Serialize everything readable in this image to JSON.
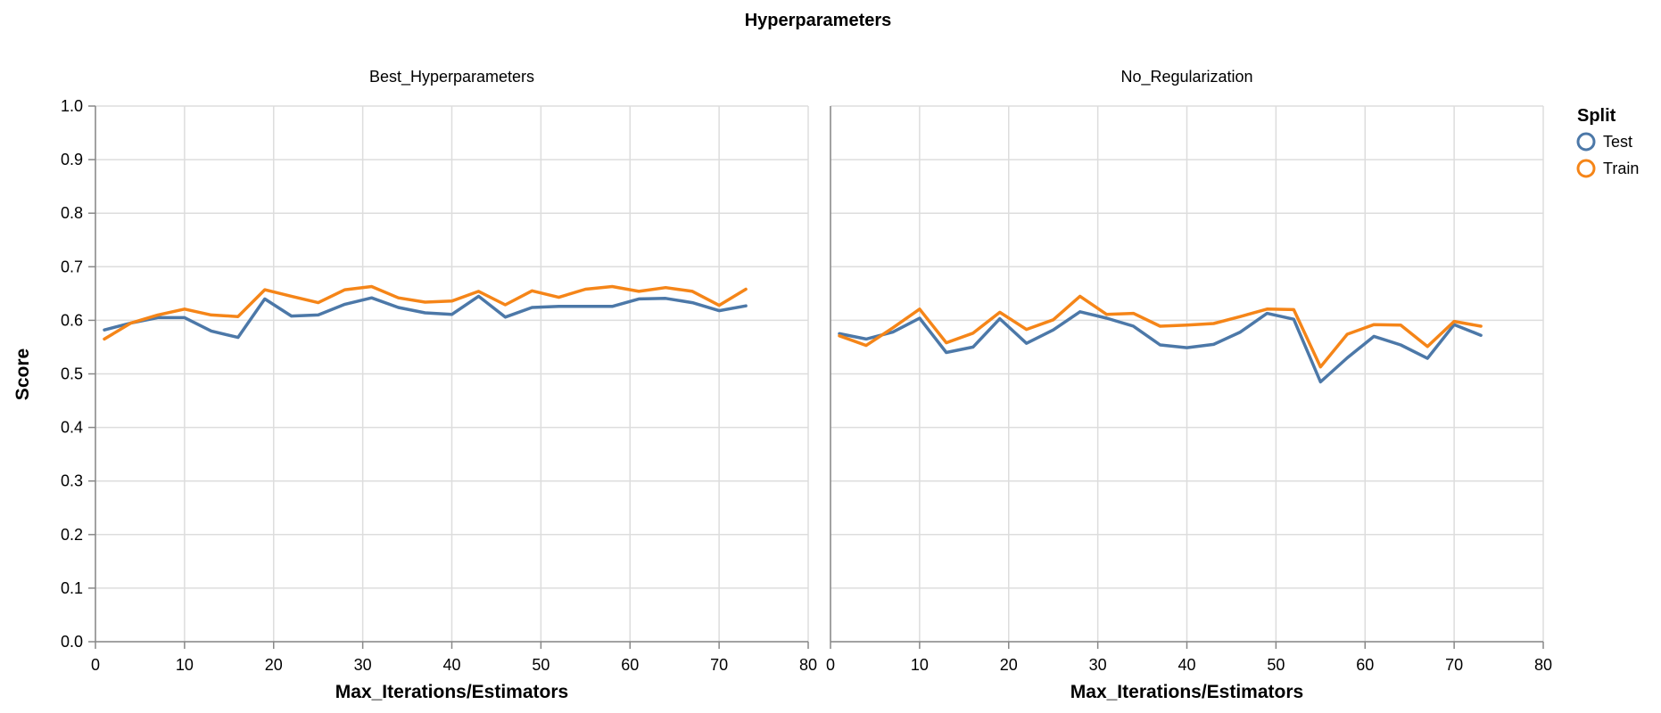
{
  "chart_data": {
    "type": "line",
    "title": "Hyperparameters",
    "legend": {
      "title": "Split",
      "position": "top-right",
      "entries": [
        {
          "label": "Test",
          "color": "#4c78a8"
        },
        {
          "label": "Train",
          "color": "#f58518"
        }
      ]
    },
    "x_axis": {
      "label": "Max_Iterations/Estimators",
      "range": [
        0,
        80
      ],
      "ticks": [
        "0",
        "10",
        "20",
        "30",
        "40",
        "50",
        "60",
        "70",
        "80"
      ],
      "tick_values": [
        0,
        10,
        20,
        30,
        40,
        50,
        60,
        70,
        80
      ]
    },
    "y_axis": {
      "label": "Score",
      "range": [
        0,
        1
      ],
      "ticks": [
        "0.0",
        "0.1",
        "0.2",
        "0.3",
        "0.4",
        "0.5",
        "0.6",
        "0.7",
        "0.8",
        "0.9",
        "1.0"
      ],
      "tick_values": [
        0,
        0.1,
        0.2,
        0.3,
        0.4,
        0.5,
        0.6,
        0.7,
        0.8,
        0.9,
        1.0
      ]
    },
    "grid": true,
    "x": [
      1,
      4,
      7,
      10,
      13,
      16,
      19,
      22,
      25,
      28,
      31,
      34,
      37,
      40,
      43,
      46,
      49,
      52,
      55,
      58,
      61,
      64,
      67,
      70,
      73
    ],
    "facets": [
      {
        "title": "Best_Hyperparameters",
        "series": [
          {
            "name": "Test",
            "color": "#4c78a8",
            "values": [
              0.582,
              0.595,
              0.605,
              0.605,
              0.58,
              0.568,
              0.64,
              0.608,
              0.61,
              0.63,
              0.642,
              0.624,
              0.614,
              0.611,
              0.645,
              0.606,
              0.624,
              0.626,
              0.626,
              0.626,
              0.64,
              0.641,
              0.633,
              0.618,
              0.627
            ]
          },
          {
            "name": "Train",
            "color": "#f58518",
            "values": [
              0.565,
              0.595,
              0.61,
              0.621,
              0.61,
              0.607,
              0.657,
              0.645,
              0.633,
              0.657,
              0.663,
              0.642,
              0.634,
              0.636,
              0.654,
              0.629,
              0.655,
              0.643,
              0.658,
              0.663,
              0.654,
              0.661,
              0.654,
              0.628,
              0.658
            ]
          }
        ]
      },
      {
        "title": "No_Regularization",
        "series": [
          {
            "name": "Test",
            "color": "#4c78a8",
            "values": [
              0.575,
              0.565,
              0.578,
              0.604,
              0.54,
              0.55,
              0.603,
              0.557,
              0.582,
              0.616,
              0.604,
              0.589,
              0.554,
              0.549,
              0.555,
              0.578,
              0.613,
              0.602,
              0.485,
              0.53,
              0.57,
              0.554,
              0.529,
              0.592,
              0.572
            ]
          },
          {
            "name": "Train",
            "color": "#f58518",
            "values": [
              0.571,
              0.553,
              0.586,
              0.621,
              0.558,
              0.576,
              0.615,
              0.583,
              0.601,
              0.645,
              0.611,
              0.613,
              0.589,
              0.591,
              0.594,
              0.607,
              0.621,
              0.62,
              0.513,
              0.574,
              0.592,
              0.591,
              0.551,
              0.598,
              0.589
            ]
          }
        ]
      }
    ]
  }
}
